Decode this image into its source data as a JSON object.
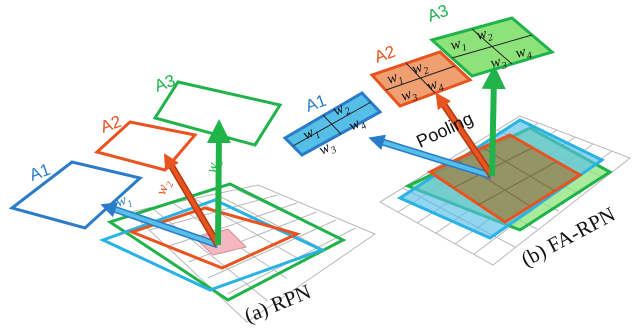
{
  "colors": {
    "blue": "#2a7bc8",
    "blue_fill": "#56bfe8",
    "orange": "#e8531f",
    "orange_fill": "#f0a070",
    "green": "#1fb34a",
    "green_fill": "#8de37a",
    "grid": "#b8b8b8",
    "pink": "#f6b8c0",
    "olive": "#9a8a55"
  },
  "left": {
    "caption": "(a) RPN",
    "anchors": {
      "a1": "A1",
      "a2": "A2",
      "a3": "A3"
    },
    "weights": {
      "w1": {
        "sym": "w",
        "sub": "1"
      },
      "w2": {
        "sym": "w",
        "sub": "2"
      },
      "w3": {
        "sym": "w",
        "sub": "3"
      }
    }
  },
  "right": {
    "caption": "(b) FA-RPN",
    "pooling": "Pooling",
    "anchors": {
      "a1": "A1",
      "a2": "A2",
      "a3": "A3"
    },
    "cells": {
      "c1": {
        "sym": "w",
        "sub": "1"
      },
      "c2": {
        "sym": "w",
        "sub": "2"
      },
      "c3": {
        "sym": "w",
        "sub": "3"
      },
      "c4": {
        "sym": "w",
        "sub": "4"
      }
    }
  }
}
